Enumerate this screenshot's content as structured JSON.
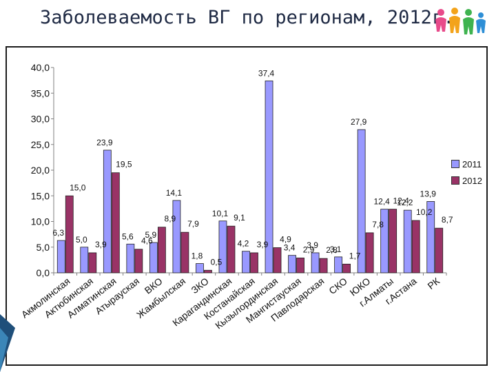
{
  "title": "Заболеваемость ВГ по регионам, 2012г.",
  "colors": {
    "s2011": "#9999ff",
    "s2012": "#993366",
    "axis": "#7f7f7f",
    "title": "#1f2a44"
  },
  "legend_position": "right",
  "chart_data": {
    "type": "bar",
    "title": "",
    "xlabel": "",
    "ylabel": "",
    "ylim": [
      0,
      40
    ],
    "yticks": [
      "0,0",
      "5,0",
      "10,0",
      "15,0",
      "20,0",
      "25,0",
      "30,0",
      "35,0",
      "40,0"
    ],
    "grid": false,
    "categories": [
      "Акмолинская",
      "Актюбинская",
      "Алматинская",
      "Атырауская",
      "ВКО",
      "Жамбылская",
      "ЗКО",
      "Карагандинская",
      "Костанайская",
      "Кызылординская",
      "Мангистауская",
      "Павлодарская",
      "СКО",
      "ЮКО",
      "г.Алматы",
      "г.Астана",
      "РК"
    ],
    "series": [
      {
        "name": "2011",
        "values": [
          6.3,
          5.0,
          23.9,
          5.6,
          5.9,
          14.1,
          1.8,
          10.1,
          4.2,
          37.4,
          3.4,
          3.9,
          3.1,
          27.9,
          12.4,
          12.2,
          13.9
        ],
        "labels": [
          "6,3",
          "5,0",
          "23,9",
          "5,6",
          "5,9",
          "14,1",
          "1,8",
          "10,1",
          "4,2",
          "37,4",
          "3,4",
          "3,9",
          "3,1",
          "27,9",
          "12,4",
          "12,2",
          "13,9"
        ]
      },
      {
        "name": "2012",
        "values": [
          15.0,
          3.9,
          19.5,
          4.6,
          8.9,
          7.9,
          0.5,
          9.1,
          3.9,
          4.9,
          2.9,
          2.8,
          1.7,
          7.8,
          12.4,
          10.2,
          8.7
        ],
        "labels": [
          "15,0",
          "3,9",
          "19,5",
          "4,6",
          "8,9",
          "7,9",
          "0,5",
          "9,1",
          "3,9",
          "4,9",
          "2,9",
          "2,8",
          "1,7",
          "7,8",
          "12,4",
          "10,2",
          "8,7"
        ]
      }
    ]
  }
}
